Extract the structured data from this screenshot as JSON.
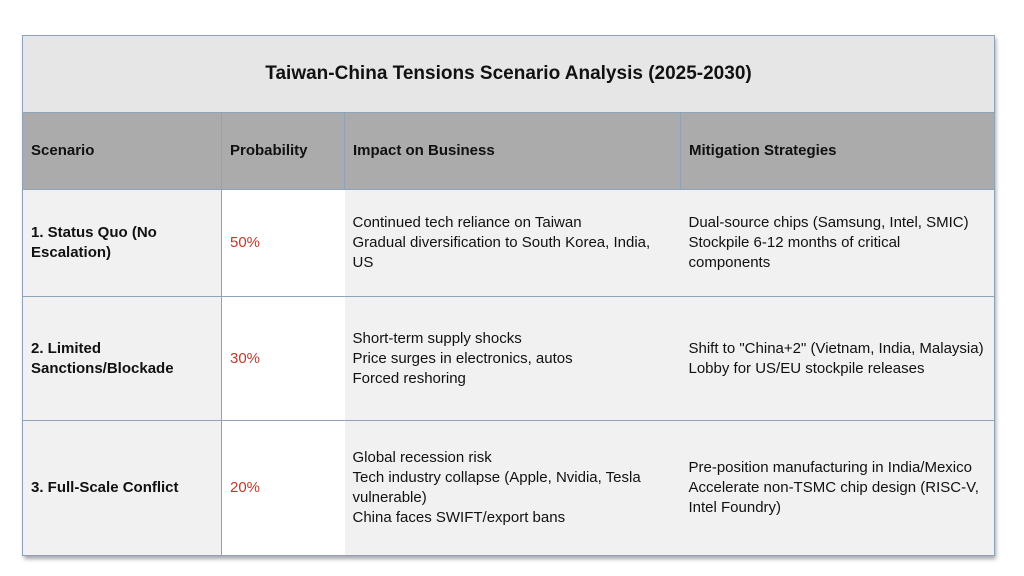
{
  "title": "Taiwan-China Tensions Scenario Analysis (2025-2030)",
  "colors": {
    "title_bg": "#e6e6e6",
    "header_bg": "#ababab",
    "cell_bg": "#f1f1f1",
    "probability_text": "#c0392b",
    "border": "#8fa3b8"
  },
  "headers": {
    "scenario": "Scenario",
    "probability": "Probability",
    "impact": "Impact on Business",
    "mitigation": "Mitigation Strategies"
  },
  "rows": [
    {
      "scenario": "1. Status Quo (No Escalation)",
      "probability": "50%",
      "impact": [
        "Continued tech reliance on Taiwan",
        "Gradual diversification to South Korea, India, US"
      ],
      "mitigation": [
        "Dual-source chips (Samsung, Intel, SMIC)",
        "Stockpile 6-12 months of critical components"
      ]
    },
    {
      "scenario": "2. Limited Sanctions/Blockade",
      "probability": "30%",
      "impact": [
        "Short-term supply shocks",
        "Price surges in electronics, autos",
        "Forced reshoring"
      ],
      "mitigation": [
        "Shift to \"China+2\" (Vietnam, India, Malaysia)",
        "Lobby for US/EU stockpile releases"
      ]
    },
    {
      "scenario": "3. Full-Scale Conflict",
      "probability": "20%",
      "impact": [
        "Global recession risk",
        "Tech industry collapse (Apple, Nvidia, Tesla vulnerable)",
        "China faces SWIFT/export bans"
      ],
      "mitigation": [
        "Pre-position manufacturing in India/Mexico",
        "Accelerate non-TSMC chip design (RISC-V, Intel Foundry)"
      ]
    }
  ]
}
